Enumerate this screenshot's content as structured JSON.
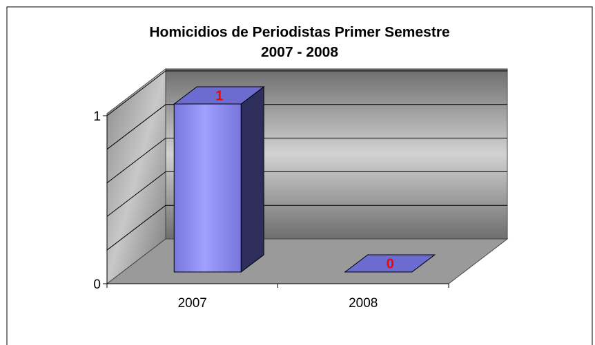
{
  "chart_data": {
    "type": "bar3d",
    "title": [
      "Homicidios de Periodistas Primer Semestre",
      "2007 - 2008"
    ],
    "categories": [
      "2007",
      "2008"
    ],
    "values": [
      1,
      0
    ],
    "color": "#9999ff",
    "label_color": "#ff0000",
    "ylim": [
      0,
      1
    ],
    "yticks": [
      0,
      1
    ],
    "ygrid": [
      0.2,
      0.4,
      0.6,
      0.8,
      1
    ]
  }
}
